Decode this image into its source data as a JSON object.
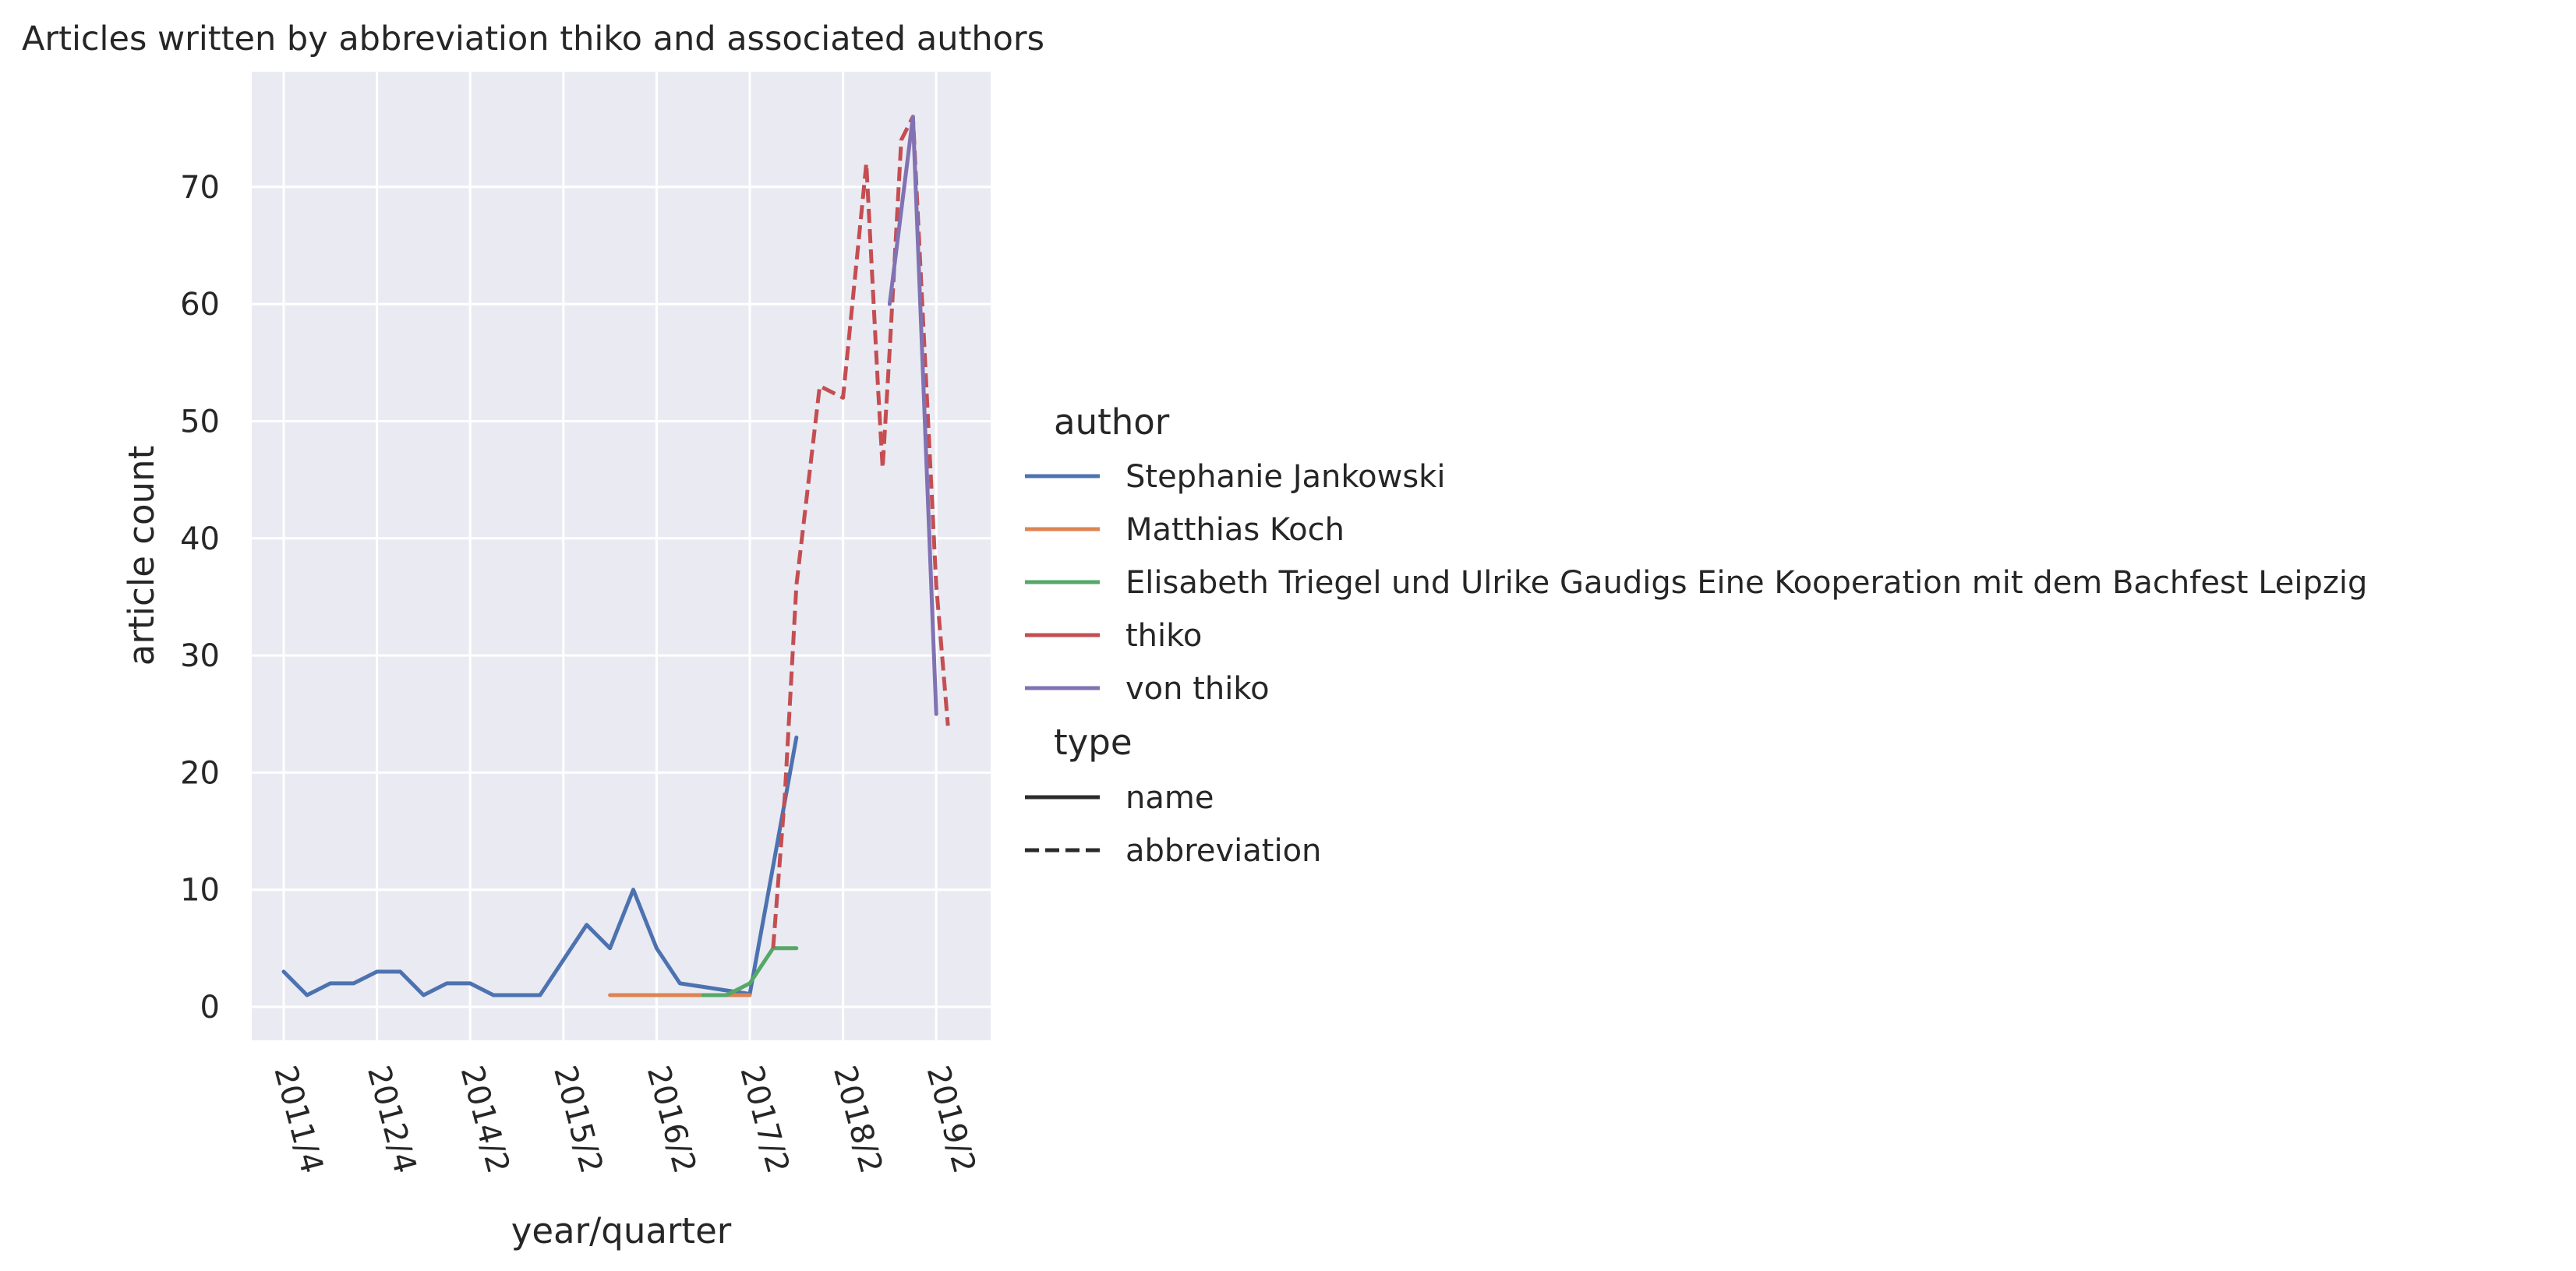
{
  "chart_data": {
    "type": "line",
    "title": "Articles written by abbreviation thiko and associated authors",
    "xlabel": "year/quarter",
    "ylabel": "article count",
    "x_ticks": [
      "2011/4",
      "2012/4",
      "2014/2",
      "2015/2",
      "2016/2",
      "2017/2",
      "2018/2",
      "2019/2"
    ],
    "y_ticks": [
      "0",
      "10",
      "20",
      "30",
      "40",
      "50",
      "60",
      "70"
    ],
    "ylim": [
      -2.8,
      79.8
    ],
    "xlim": [
      -0.6,
      30.8
    ],
    "grid": true,
    "legend_position": "right",
    "legend": {
      "hue_title": "author",
      "style_title": "type",
      "style_items": [
        {
          "label": "name",
          "dash": "solid"
        },
        {
          "label": "abbreviation",
          "dash": "dashed"
        }
      ]
    },
    "series": [
      {
        "name": "Stephanie Jankowski",
        "color": "#4c72b0",
        "dash": "solid",
        "x": [
          0,
          1,
          2,
          3,
          4,
          5,
          6,
          7,
          8,
          9,
          10,
          11,
          12,
          13,
          14,
          15,
          16,
          17,
          18,
          19,
          20,
          21,
          22
        ],
        "y": [
          3,
          1,
          2,
          2,
          3,
          3,
          1,
          2,
          2,
          1,
          1,
          1,
          4,
          7,
          5,
          10,
          5,
          2,
          1.7,
          1.4,
          1.1,
          12,
          23
        ]
      },
      {
        "name": "Matthias Koch",
        "color": "#dd8452",
        "dash": "solid",
        "x": [
          14,
          20
        ],
        "y": [
          1,
          1
        ]
      },
      {
        "name": "Elisabeth Triegel und Ulrike Gaudigs Eine Kooperation mit dem Bachfest Leipzig",
        "color": "#55a868",
        "dash": "solid",
        "x": [
          18,
          19,
          20,
          21,
          22
        ],
        "y": [
          1,
          1,
          2,
          5,
          5
        ]
      },
      {
        "name": "thiko",
        "color": "#c44e52",
        "dash": "dashed",
        "x": [
          21,
          21.5,
          22,
          23,
          24,
          25,
          25.5,
          25.7,
          26,
          26.5,
          27,
          28,
          28.5
        ],
        "y": [
          5,
          18,
          36,
          53,
          52,
          72,
          53,
          46,
          56,
          74,
          76,
          36,
          24
        ]
      },
      {
        "name": "von thiko",
        "color": "#8172b3",
        "dash": "solid",
        "x": [
          26,
          27,
          28
        ],
        "y": [
          60,
          76,
          25
        ]
      }
    ]
  }
}
